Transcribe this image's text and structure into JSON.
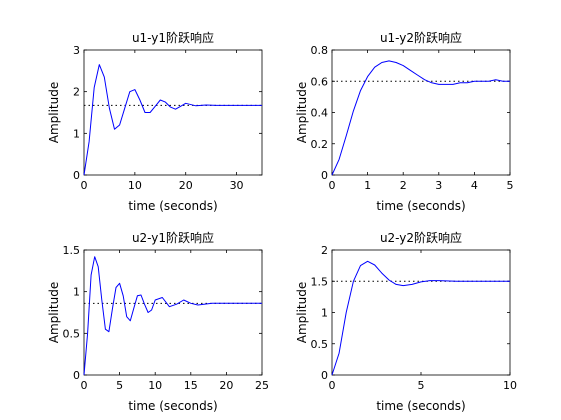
{
  "chart_data": [
    {
      "type": "line",
      "title": "u1-y1阶跃响应",
      "xlabel": "time (seconds)",
      "ylabel": "Amplitude",
      "xlim": [
        0,
        35
      ],
      "ylim": [
        0,
        3
      ],
      "xticks": [
        0,
        10,
        20,
        30
      ],
      "yticks": [
        0,
        1,
        2,
        3
      ],
      "steady_state": 1.67,
      "line_color": "#0000ff",
      "reference_color": "#000000",
      "x": [
        0,
        1,
        2,
        3,
        4,
        5,
        6,
        7,
        8,
        9,
        10,
        11,
        12,
        13,
        14,
        15,
        16,
        17,
        18,
        19,
        20,
        22,
        24,
        26,
        28,
        30,
        32,
        35
      ],
      "y": [
        0,
        0.8,
        2.1,
        2.65,
        2.35,
        1.6,
        1.1,
        1.2,
        1.6,
        2.0,
        2.05,
        1.8,
        1.5,
        1.5,
        1.65,
        1.8,
        1.75,
        1.63,
        1.58,
        1.65,
        1.72,
        1.66,
        1.68,
        1.67,
        1.67,
        1.67,
        1.67,
        1.67
      ]
    },
    {
      "type": "line",
      "title": "u1-y2阶跃响应",
      "xlabel": "time (seconds)",
      "ylabel": "Amplitude",
      "xlim": [
        0,
        5
      ],
      "ylim": [
        0,
        0.8
      ],
      "xticks": [
        0,
        1,
        2,
        3,
        4,
        5
      ],
      "yticks": [
        0,
        0.2,
        0.4,
        0.6,
        0.8
      ],
      "steady_state": 0.6,
      "line_color": "#0000ff",
      "reference_color": "#000000",
      "x": [
        0,
        0.2,
        0.4,
        0.6,
        0.8,
        1.0,
        1.2,
        1.4,
        1.6,
        1.8,
        2.0,
        2.2,
        2.4,
        2.6,
        2.8,
        3.0,
        3.2,
        3.4,
        3.6,
        3.8,
        4.0,
        4.2,
        4.4,
        4.6,
        4.8,
        5.0
      ],
      "y": [
        0,
        0.1,
        0.25,
        0.41,
        0.54,
        0.63,
        0.69,
        0.72,
        0.73,
        0.72,
        0.7,
        0.67,
        0.64,
        0.61,
        0.59,
        0.58,
        0.58,
        0.58,
        0.59,
        0.59,
        0.6,
        0.6,
        0.6,
        0.61,
        0.6,
        0.6
      ]
    },
    {
      "type": "line",
      "title": "u2-y1阶跃响应",
      "xlabel": "time (seconds)",
      "ylabel": "Amplitude",
      "xlim": [
        0,
        25
      ],
      "ylim": [
        0,
        1.5
      ],
      "xticks": [
        0,
        5,
        10,
        15,
        20,
        25
      ],
      "yticks": [
        0,
        0.5,
        1,
        1.5
      ],
      "steady_state": 0.86,
      "line_color": "#0000ff",
      "reference_color": "#000000",
      "x": [
        0,
        0.5,
        1,
        1.5,
        2,
        2.5,
        3,
        3.5,
        4,
        4.5,
        5,
        5.5,
        6,
        6.5,
        7,
        7.5,
        8,
        8.5,
        9,
        9.5,
        10,
        11,
        12,
        13,
        14,
        15,
        16,
        18,
        20,
        22,
        25
      ],
      "y": [
        0,
        0.5,
        1.2,
        1.42,
        1.3,
        0.9,
        0.55,
        0.52,
        0.8,
        1.05,
        1.1,
        0.95,
        0.7,
        0.65,
        0.8,
        0.95,
        0.96,
        0.85,
        0.75,
        0.78,
        0.9,
        0.93,
        0.82,
        0.85,
        0.9,
        0.86,
        0.84,
        0.86,
        0.86,
        0.86,
        0.86
      ]
    },
    {
      "type": "line",
      "title": "u2-y2阶跃响应",
      "xlabel": "time (seconds)",
      "ylabel": "Amplitude",
      "xlim": [
        0,
        10
      ],
      "ylim": [
        0,
        2
      ],
      "xticks": [
        0,
        5,
        10
      ],
      "yticks": [
        0,
        0.5,
        1,
        1.5,
        2
      ],
      "steady_state": 1.5,
      "line_color": "#0000ff",
      "reference_color": "#000000",
      "x": [
        0,
        0.4,
        0.8,
        1.2,
        1.6,
        2.0,
        2.4,
        2.8,
        3.2,
        3.6,
        4.0,
        4.5,
        5.0,
        5.5,
        6.0,
        7.0,
        8.0,
        9.0,
        10.0
      ],
      "y": [
        0,
        0.35,
        1.0,
        1.5,
        1.75,
        1.82,
        1.76,
        1.63,
        1.52,
        1.45,
        1.43,
        1.45,
        1.49,
        1.51,
        1.51,
        1.5,
        1.5,
        1.5,
        1.5
      ]
    }
  ]
}
